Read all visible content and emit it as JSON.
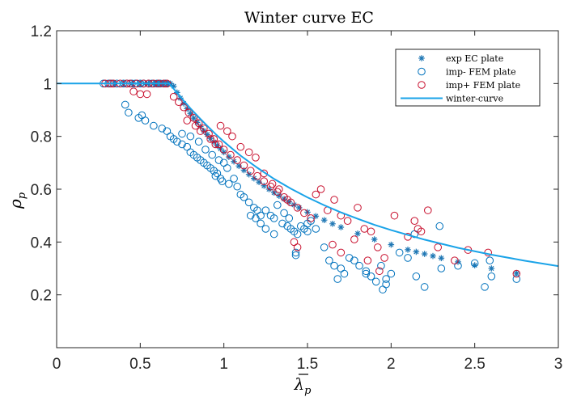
{
  "chart_data": {
    "type": "scatter",
    "title": "Winter curve EC",
    "xlabel": "λp",
    "ylabel": "ρp",
    "xlim": [
      0,
      3
    ],
    "ylim": [
      0,
      1.2
    ],
    "xticks": [
      0,
      0.5,
      1,
      1.5,
      2,
      2.5,
      3
    ],
    "xtick_labels": [
      "0",
      "0.5",
      "1",
      "1.5",
      "2",
      "2.5",
      "3"
    ],
    "yticks": [
      0.2,
      0.4,
      0.6,
      0.8,
      1,
      1.2
    ],
    "ytick_labels": [
      "0.2",
      "0.4",
      "0.6",
      "0.8",
      "1",
      "1.2"
    ],
    "grid": false,
    "legend_position": "top-right",
    "series": [
      {
        "name": "exp EC plate",
        "marker": "asterisk",
        "color": "#1f77b4",
        "x": [
          0.35,
          0.4,
          0.45,
          0.5,
          0.53,
          0.55,
          0.58,
          0.6,
          0.62,
          0.64,
          0.66,
          0.67,
          0.68,
          0.7,
          0.72,
          0.74,
          0.76,
          0.78,
          0.8,
          0.82,
          0.84,
          0.86,
          0.88,
          0.9,
          0.92,
          0.94,
          0.96,
          0.98,
          1.0,
          1.03,
          1.06,
          1.09,
          1.12,
          1.15,
          1.18,
          1.21,
          1.24,
          1.27,
          1.3,
          1.33,
          1.36,
          1.39,
          1.42,
          1.45,
          1.5,
          1.55,
          1.6,
          1.65,
          1.7,
          1.8,
          1.9,
          2.0,
          2.1,
          2.15,
          2.2,
          2.25,
          2.3,
          2.4,
          2.5,
          2.6,
          2.75
        ],
        "y": [
          1,
          1,
          1,
          1,
          1,
          1,
          1,
          1,
          1,
          1,
          1,
          1,
          1,
          0.99,
          0.966,
          0.945,
          0.925,
          0.905,
          0.887,
          0.869,
          0.853,
          0.837,
          0.821,
          0.807,
          0.792,
          0.779,
          0.766,
          0.753,
          0.74,
          0.722,
          0.705,
          0.688,
          0.672,
          0.656,
          0.641,
          0.627,
          0.613,
          0.6,
          0.587,
          0.575,
          0.563,
          0.552,
          0.541,
          0.53,
          0.513,
          0.498,
          0.483,
          0.469,
          0.456,
          0.432,
          0.41,
          0.39,
          0.371,
          0.363,
          0.355,
          0.347,
          0.339,
          0.325,
          0.312,
          0.3,
          0.282
        ]
      },
      {
        "name": "imp- FEM plate",
        "marker": "circle",
        "color": "#0072bd",
        "x": [
          0.28,
          0.31,
          0.33,
          0.36,
          0.4,
          0.42,
          0.45,
          0.47,
          0.5,
          0.52,
          0.55,
          0.57,
          0.6,
          0.62,
          0.65,
          0.41,
          0.43,
          0.49,
          0.51,
          0.53,
          0.58,
          0.63,
          0.66,
          0.68,
          0.7,
          0.72,
          0.75,
          0.78,
          0.8,
          0.82,
          0.84,
          0.86,
          0.88,
          0.9,
          0.92,
          0.94,
          0.96,
          0.98,
          0.75,
          0.8,
          0.85,
          0.89,
          0.93,
          0.97,
          1.0,
          1.02,
          0.95,
          0.99,
          1.03,
          1.06,
          1.08,
          1.1,
          1.12,
          1.15,
          1.18,
          1.2,
          1.22,
          1.25,
          1.28,
          1.3,
          1.35,
          1.38,
          1.4,
          1.42,
          1.44,
          1.46,
          1.48,
          1.5,
          1.52,
          1.16,
          1.19,
          1.22,
          1.25,
          1.3,
          1.32,
          1.36,
          1.39,
          1.43,
          1.43,
          1.5,
          1.55,
          1.6,
          1.63,
          1.66,
          1.7,
          1.72,
          1.68,
          1.75,
          1.78,
          1.81,
          1.85,
          1.88,
          1.91,
          1.95,
          1.97,
          2.0,
          2.05,
          2.1,
          2.15,
          2.2,
          2.3,
          2.4,
          2.5,
          2.6,
          2.75,
          1.85,
          1.94,
          1.97,
          2.14,
          2.29,
          2.56,
          2.59
        ],
        "y": [
          1,
          1,
          1,
          1,
          1,
          1,
          1,
          1,
          1,
          1,
          1,
          1,
          1,
          1,
          1,
          0.92,
          0.89,
          0.87,
          0.88,
          0.86,
          0.84,
          0.83,
          0.82,
          0.8,
          0.79,
          0.78,
          0.77,
          0.76,
          0.74,
          0.73,
          0.72,
          0.71,
          0.7,
          0.69,
          0.68,
          0.67,
          0.66,
          0.64,
          0.81,
          0.8,
          0.78,
          0.75,
          0.73,
          0.71,
          0.7,
          0.68,
          0.65,
          0.63,
          0.62,
          0.64,
          0.61,
          0.58,
          0.57,
          0.55,
          0.53,
          0.52,
          0.5,
          0.52,
          0.5,
          0.49,
          0.47,
          0.46,
          0.45,
          0.44,
          0.43,
          0.46,
          0.45,
          0.44,
          0.48,
          0.5,
          0.49,
          0.47,
          0.45,
          0.43,
          0.54,
          0.51,
          0.49,
          0.36,
          0.35,
          0.47,
          0.45,
          0.38,
          0.33,
          0.31,
          0.3,
          0.28,
          0.26,
          0.34,
          0.33,
          0.31,
          0.29,
          0.27,
          0.25,
          0.22,
          0.24,
          0.28,
          0.36,
          0.34,
          0.27,
          0.23,
          0.3,
          0.31,
          0.32,
          0.27,
          0.26,
          0.28,
          0.31,
          0.26,
          0.43,
          0.46,
          0.23,
          0.33
        ]
      },
      {
        "name": "imp+ FEM plate",
        "marker": "circle",
        "color": "#c8102e",
        "x": [
          0.29,
          0.32,
          0.34,
          0.38,
          0.42,
          0.44,
          0.48,
          0.52,
          0.55,
          0.58,
          0.61,
          0.64,
          0.66,
          0.46,
          0.5,
          0.54,
          0.7,
          0.73,
          0.76,
          0.79,
          0.82,
          0.85,
          0.88,
          0.91,
          0.94,
          0.97,
          1.0,
          1.04,
          1.08,
          1.12,
          1.16,
          1.2,
          1.24,
          1.28,
          1.32,
          1.36,
          1.4,
          1.44,
          1.48,
          1.52,
          0.78,
          0.83,
          0.86,
          0.92,
          0.95,
          0.98,
          1.02,
          1.05,
          1.1,
          1.15,
          1.19,
          1.24,
          1.29,
          1.33,
          1.38,
          1.42,
          1.44,
          1.55,
          1.58,
          1.62,
          1.66,
          1.7,
          1.74,
          1.8,
          1.84,
          1.88,
          1.92,
          1.96,
          2.02,
          2.1,
          2.14,
          2.16,
          2.18,
          2.22,
          2.28,
          2.38,
          2.46,
          2.58,
          2.75,
          1.65,
          1.7,
          1.78,
          1.86,
          1.93
        ],
        "y": [
          1,
          1,
          1,
          1,
          1,
          1,
          1,
          1,
          1,
          1,
          1,
          1,
          1,
          0.97,
          0.96,
          0.96,
          0.95,
          0.93,
          0.91,
          0.89,
          0.87,
          0.85,
          0.83,
          0.81,
          0.79,
          0.77,
          0.75,
          0.73,
          0.71,
          0.69,
          0.67,
          0.65,
          0.63,
          0.61,
          0.59,
          0.57,
          0.55,
          0.53,
          0.51,
          0.49,
          0.86,
          0.84,
          0.82,
          0.79,
          0.77,
          0.84,
          0.82,
          0.8,
          0.76,
          0.74,
          0.72,
          0.66,
          0.62,
          0.6,
          0.56,
          0.4,
          0.38,
          0.58,
          0.6,
          0.52,
          0.56,
          0.5,
          0.48,
          0.53,
          0.45,
          0.44,
          0.38,
          0.34,
          0.5,
          0.42,
          0.48,
          0.45,
          0.44,
          0.52,
          0.38,
          0.33,
          0.37,
          0.36,
          0.28,
          0.39,
          0.36,
          0.41,
          0.33,
          0.29
        ]
      },
      {
        "name": "winter-curve",
        "marker": "line",
        "color": "#1aa3e8",
        "x": [
          0,
          0.673,
          0.7,
          0.75,
          0.8,
          0.85,
          0.9,
          0.95,
          1.0,
          1.1,
          1.2,
          1.3,
          1.4,
          1.5,
          1.6,
          1.7,
          1.8,
          1.9,
          2.0,
          2.2,
          2.4,
          2.6,
          2.8,
          3.0
        ],
        "y": [
          1,
          1,
          0.98,
          0.942,
          0.906,
          0.872,
          0.84,
          0.809,
          0.78,
          0.727,
          0.681,
          0.639,
          0.602,
          0.569,
          0.539,
          0.512,
          0.488,
          0.465,
          0.445,
          0.409,
          0.378,
          0.352,
          0.329,
          0.309
        ]
      }
    ]
  }
}
